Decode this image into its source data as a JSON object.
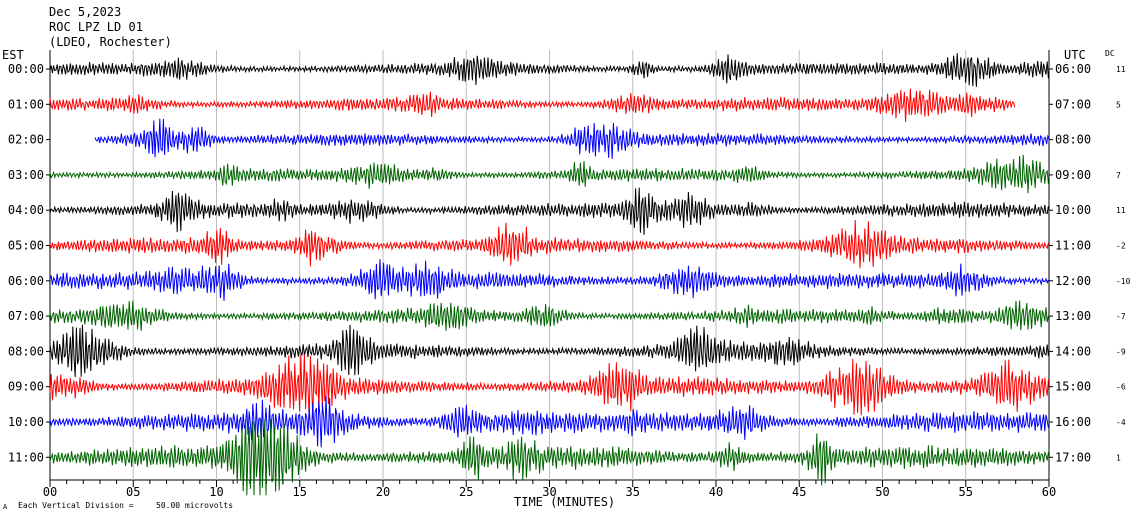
{
  "header": {
    "date": "Dec 5,2023",
    "station": "ROC LPZ LD 01",
    "network": "(LDEO, Rochester)"
  },
  "left_axis_label": "EST",
  "right_axis_label": "UTC",
  "dc_label": "DC",
  "footer": {
    "xlabel": "TIME (MINUTES)",
    "scale_note": "Each Vertical Division =",
    "scale_value": "50.00 microvolts",
    "mark": "A"
  },
  "colors": [
    "#000000",
    "#ff0000",
    "#0000ff",
    "#006400"
  ],
  "chart_data": {
    "type": "line",
    "x_range": [
      0,
      60
    ],
    "x_ticks": [
      "00",
      "05",
      "10",
      "15",
      "20",
      "25",
      "30",
      "35",
      "40",
      "45",
      "50",
      "55",
      "60"
    ],
    "grid": "vertical lines every 5 minutes",
    "rows": [
      {
        "est": "00:00",
        "utc": "06:00",
        "dc": "11",
        "color": "#000000",
        "amp": 11,
        "start": 0,
        "end": 60
      },
      {
        "est": "01:00",
        "utc": "07:00",
        "dc": "5",
        "color": "#ff0000",
        "amp": 12,
        "start": 0,
        "end": 58
      },
      {
        "est": "02:00",
        "utc": "08:00",
        "dc": "",
        "color": "#0000ff",
        "amp": 11,
        "start": 2.7,
        "end": 60
      },
      {
        "est": "03:00",
        "utc": "09:00",
        "dc": "7",
        "color": "#006400",
        "amp": 11,
        "start": 0,
        "end": 60
      },
      {
        "est": "04:00",
        "utc": "10:00",
        "dc": "11",
        "color": "#000000",
        "amp": 13,
        "start": 0,
        "end": 60
      },
      {
        "est": "05:00",
        "utc": "11:00",
        "dc": "-2",
        "color": "#ff0000",
        "amp": 14,
        "start": 0,
        "end": 60
      },
      {
        "est": "06:00",
        "utc": "12:00",
        "dc": "-10",
        "color": "#0000ff",
        "amp": 14,
        "start": 0,
        "end": 60
      },
      {
        "est": "07:00",
        "utc": "13:00",
        "dc": "-7",
        "color": "#006400",
        "amp": 12,
        "start": 0,
        "end": 60
      },
      {
        "est": "08:00",
        "utc": "14:00",
        "dc": "-9",
        "color": "#000000",
        "amp": 14,
        "start": 0,
        "end": 60
      },
      {
        "est": "09:00",
        "utc": "15:00",
        "dc": "-6",
        "color": "#ff0000",
        "amp": 17,
        "start": 0,
        "end": 60
      },
      {
        "est": "10:00",
        "utc": "16:00",
        "dc": "-4",
        "color": "#0000ff",
        "amp": 18,
        "start": 0,
        "end": 60
      },
      {
        "est": "11:00",
        "utc": "17:00",
        "dc": "1",
        "color": "#006400",
        "amp": 20,
        "start": 0,
        "end": 60
      }
    ]
  }
}
